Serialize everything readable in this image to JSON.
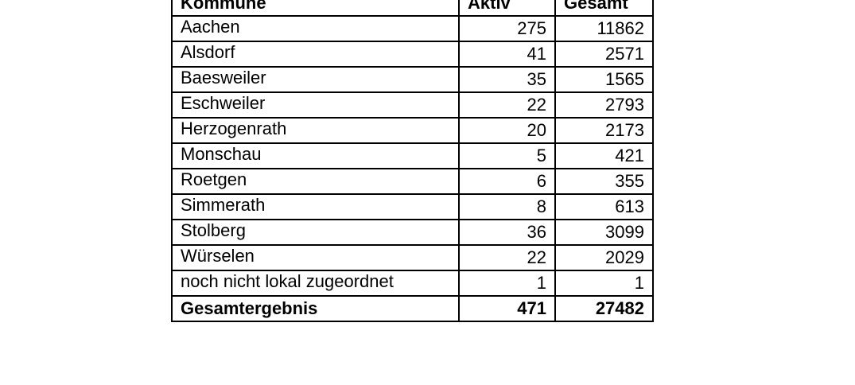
{
  "header": {
    "kommune": "Kommune",
    "aktiv": "Aktiv",
    "gesamt": "Gesamt"
  },
  "rows": [
    {
      "kommune": "Aachen",
      "aktiv": "275",
      "gesamt": "11862"
    },
    {
      "kommune": "Alsdorf",
      "aktiv": "41",
      "gesamt": "2571"
    },
    {
      "kommune": "Baesweiler",
      "aktiv": "35",
      "gesamt": "1565"
    },
    {
      "kommune": "Eschweiler",
      "aktiv": "22",
      "gesamt": "2793"
    },
    {
      "kommune": "Herzogenrath",
      "aktiv": "20",
      "gesamt": "2173"
    },
    {
      "kommune": "Monschau",
      "aktiv": "5",
      "gesamt": "421"
    },
    {
      "kommune": "Roetgen",
      "aktiv": "6",
      "gesamt": "355"
    },
    {
      "kommune": "Simmerath",
      "aktiv": "8",
      "gesamt": "613"
    },
    {
      "kommune": "Stolberg",
      "aktiv": "36",
      "gesamt": "3099"
    },
    {
      "kommune": "Würselen",
      "aktiv": "22",
      "gesamt": "2029"
    },
    {
      "kommune": "noch nicht lokal zugeordnet",
      "aktiv": "1",
      "gesamt": "1"
    }
  ],
  "total": {
    "label": "Gesamtergebnis",
    "aktiv": "471",
    "gesamt": "27482"
  }
}
